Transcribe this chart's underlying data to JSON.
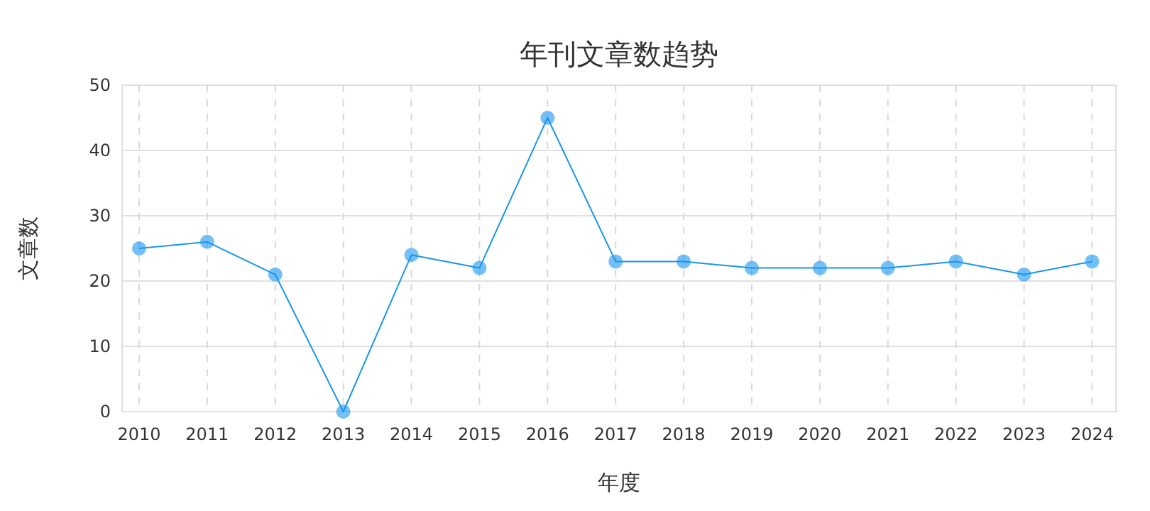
{
  "chart_data": {
    "type": "line",
    "title": "年刊文章数趋势",
    "xlabel": "年度",
    "ylabel": "文章数",
    "categories": [
      "2010",
      "2011",
      "2012",
      "2013",
      "2014",
      "2015",
      "2016",
      "2017",
      "2018",
      "2019",
      "2020",
      "2021",
      "2022",
      "2023",
      "2024"
    ],
    "series": [
      {
        "color": "#1896f0",
        "values": [
          25,
          26,
          21,
          0,
          24,
          22,
          45,
          23,
          23,
          22,
          22,
          22,
          23,
          21,
          23
        ]
      }
    ],
    "ylim": [
      0,
      50
    ],
    "yticks": [
      0,
      10,
      20,
      30,
      40,
      50
    ],
    "grid": true,
    "marker": "circle",
    "line_style": "solid"
  }
}
